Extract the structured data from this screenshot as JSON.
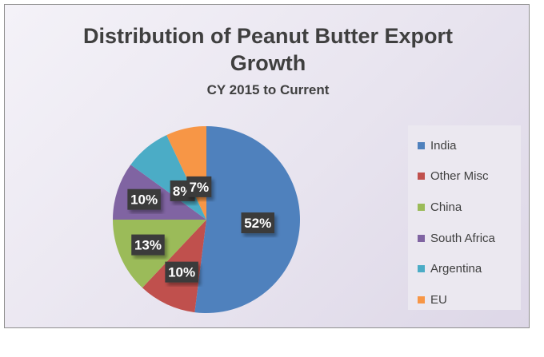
{
  "chart_data": {
    "type": "pie",
    "title": "Distribution of Peanut Butter Export Growth",
    "subtitle": "CY 2015 to Current",
    "categories": [
      "India",
      "Other Misc",
      "China",
      "South Africa",
      "Argentina",
      "EU"
    ],
    "values": [
      52,
      10,
      13,
      10,
      8,
      7
    ],
    "labels": [
      "52%",
      "10%",
      "13%",
      "10%",
      "8%",
      "7%"
    ],
    "colors": [
      "#4f81bd",
      "#c0504d",
      "#9bbb59",
      "#8064a2",
      "#4bacc6",
      "#f79646"
    ],
    "legend_position": "right"
  }
}
